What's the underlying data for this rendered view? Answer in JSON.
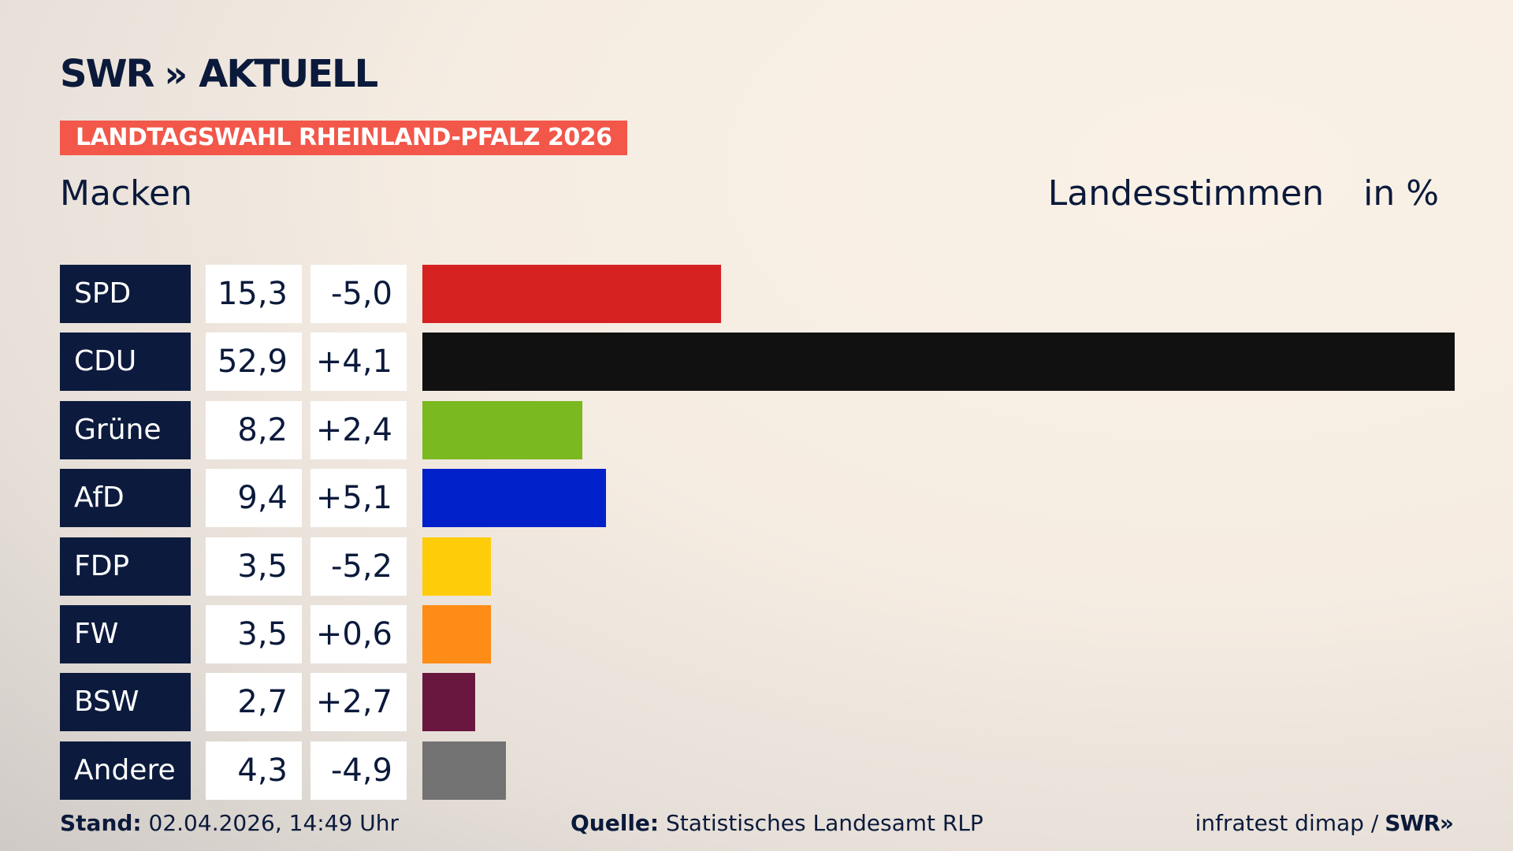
{
  "header": {
    "logo_text": "SWR",
    "logo_chevrons": "»",
    "logo_suffix": "AKTUELL",
    "badge": "LANDTAGSWAHL RHEINLAND-PFALZ 2026",
    "region": "Macken",
    "metric": "Landesstimmen",
    "unit": "in %"
  },
  "colors": {
    "badge": "#f2574a",
    "label_bg": "#0c1b3d",
    "text": "#0b1a3b"
  },
  "chart_data": {
    "type": "bar",
    "orientation": "horizontal",
    "title": "Landesstimmen",
    "unit": "in %",
    "xlim": [
      0,
      52.9
    ],
    "categories": [
      "SPD",
      "CDU",
      "Grüne",
      "AfD",
      "FDP",
      "FW",
      "BSW",
      "Andere"
    ],
    "values": [
      15.3,
      52.9,
      8.2,
      9.4,
      3.5,
      3.5,
      2.7,
      4.3
    ],
    "value_labels": [
      "15,3",
      "52,9",
      "8,2",
      "9,4",
      "3,5",
      "3,5",
      "2,7",
      "4,3"
    ],
    "diff_labels": [
      "-5,0",
      "+4,1",
      "+2,4",
      "+5,1",
      "-5,2",
      "+0,6",
      "+2,7",
      "-4,9"
    ],
    "bar_colors": [
      "#d62121",
      "#111111",
      "#7ab91f",
      "#0021c9",
      "#ffcc0a",
      "#ff8c16",
      "#6a1740",
      "#727272"
    ]
  },
  "footer": {
    "stand_label": "Stand:",
    "stand_value": "02.04.2026, 14:49 Uhr",
    "source_label": "Quelle:",
    "source_value": "Statistisches Landesamt RLP",
    "credit": "infratest dimap /",
    "credit_logo": "SWR",
    "credit_chevrons": "»"
  }
}
